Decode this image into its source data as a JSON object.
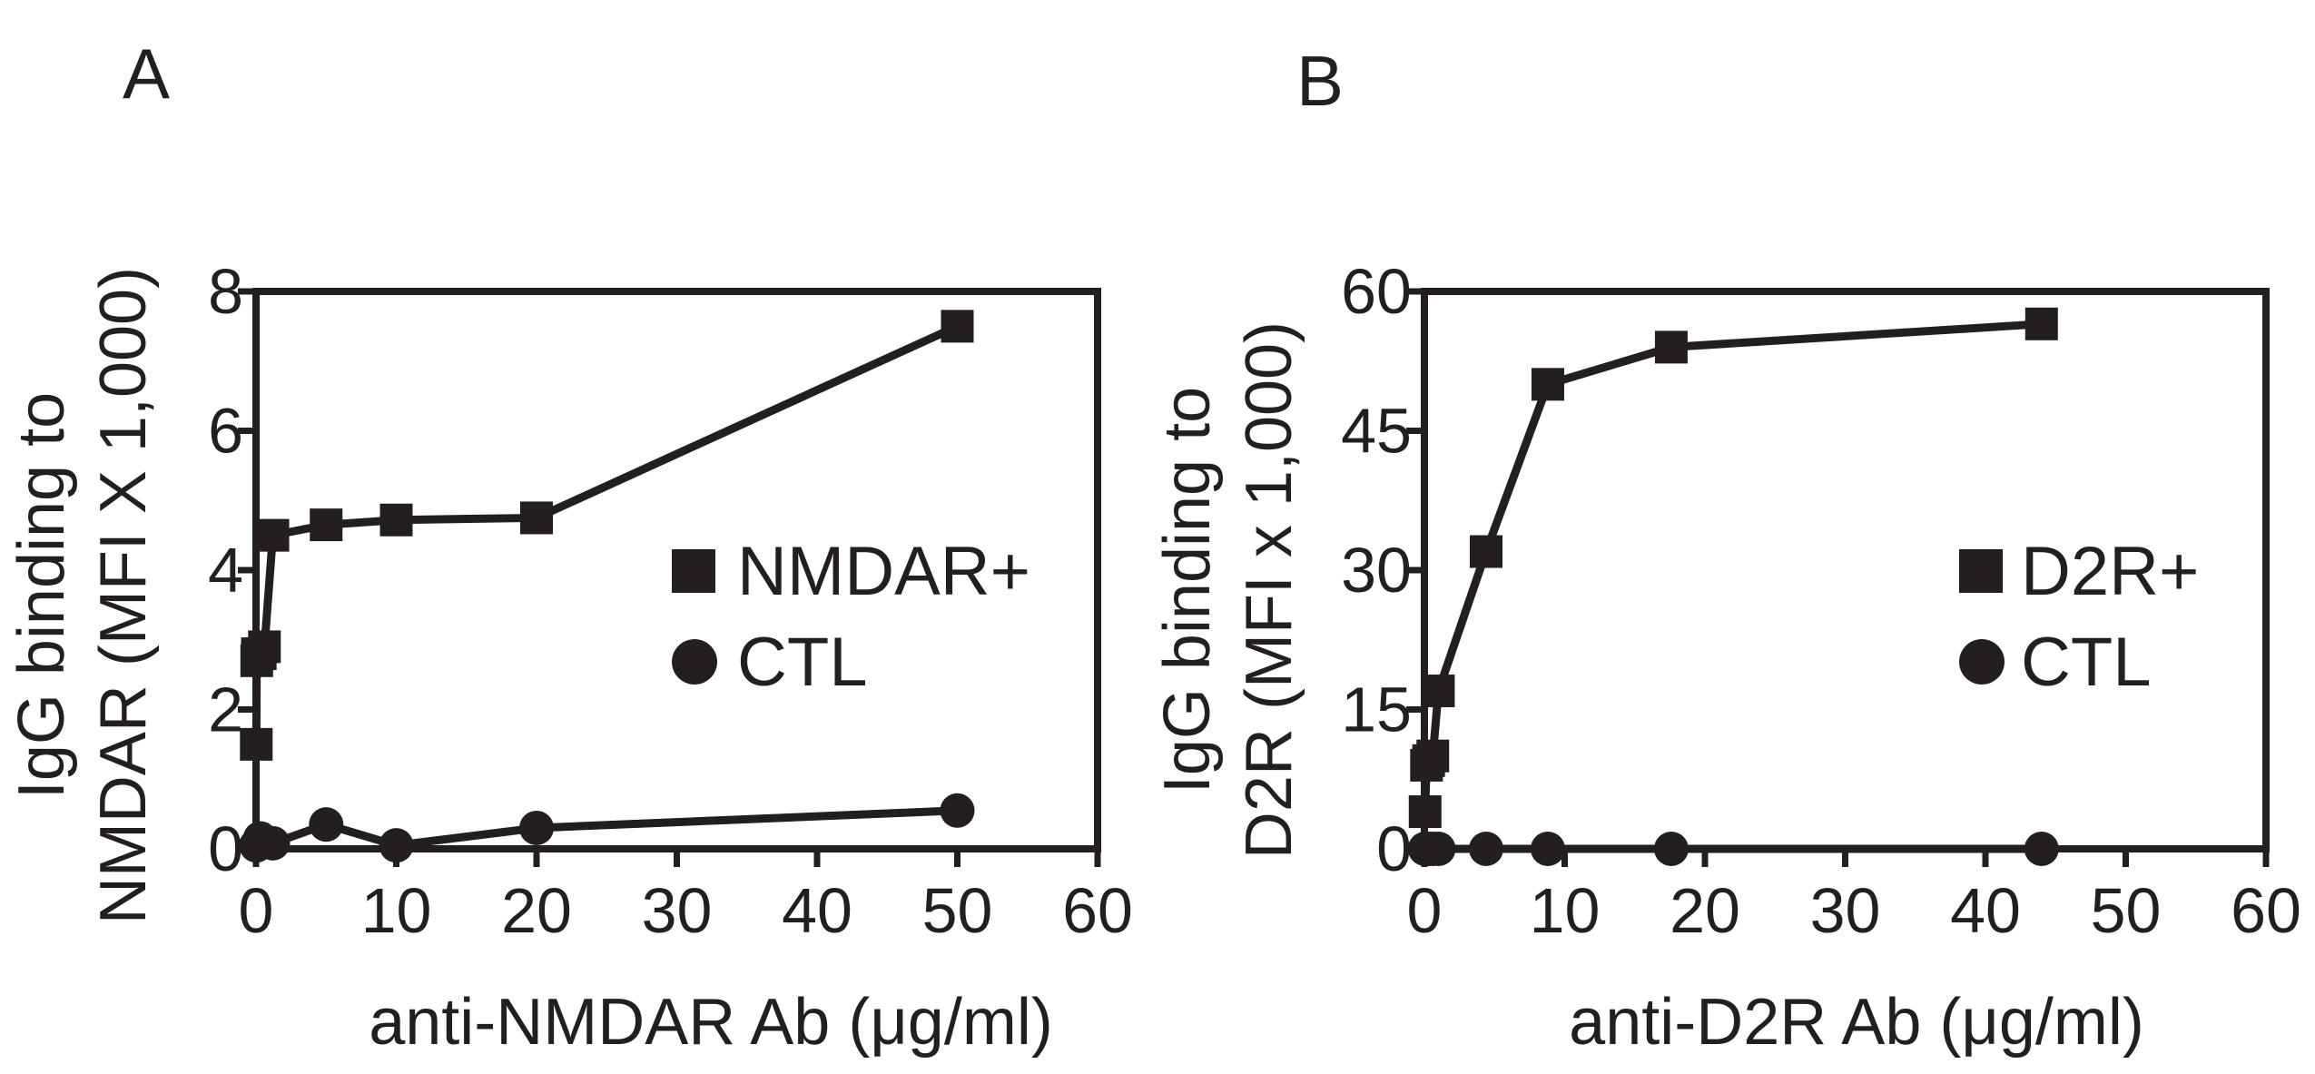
{
  "colors": {
    "ink": "#231f20",
    "background": "#ffffff"
  },
  "chart_data": [
    {
      "panel_label": "A",
      "type": "line",
      "xlabel": "anti-NMDAR Ab (μg/ml)",
      "ylabel_lines": [
        "IgG binding to",
        "NMDAR (MFI X 1,000)"
      ],
      "xlim": [
        0,
        60
      ],
      "ylim": [
        0,
        8
      ],
      "x_ticks": [
        0,
        10,
        20,
        30,
        40,
        50,
        60
      ],
      "y_ticks": [
        0,
        2,
        4,
        6,
        8
      ],
      "x_tick_labels": [
        "0",
        "10",
        "20",
        "30",
        "40",
        "50",
        "60"
      ],
      "y_tick_labels": [
        "0",
        "2",
        "4",
        "6",
        "8"
      ],
      "grid": false,
      "legend_position": "right-middle",
      "series": [
        {
          "name": "NMDAR+",
          "marker": "square",
          "x": [
            0.02,
            0.05,
            0.1,
            0.3,
            0.6,
            1.2,
            5,
            10,
            20,
            50
          ],
          "y": [
            1.5,
            2.7,
            2.8,
            2.8,
            2.9,
            4.5,
            4.65,
            4.72,
            4.75,
            7.5
          ]
        },
        {
          "name": "CTL",
          "marker": "circle",
          "x": [
            0.02,
            0.3,
            1.2,
            5,
            10,
            20,
            50
          ],
          "y": [
            0.05,
            0.15,
            0.08,
            0.35,
            0.05,
            0.3,
            0.55
          ]
        }
      ]
    },
    {
      "panel_label": "B",
      "type": "line",
      "xlabel": "anti-D2R Ab (μg/ml)",
      "ylabel_lines": [
        "IgG binding to",
        "D2R (MFI x 1,000)"
      ],
      "xlim": [
        0,
        60
      ],
      "ylim": [
        0,
        60
      ],
      "x_ticks": [
        0,
        10,
        20,
        30,
        40,
        50,
        60
      ],
      "y_ticks": [
        0,
        15,
        30,
        45,
        60
      ],
      "x_tick_labels": [
        "0",
        "10",
        "20",
        "30",
        "40",
        "50",
        "60"
      ],
      "y_tick_labels": [
        "0",
        "15",
        "30",
        "45",
        "60"
      ],
      "grid": false,
      "legend_position": "right-middle",
      "series": [
        {
          "name": "D2R+",
          "marker": "square",
          "x": [
            0.05,
            0.15,
            0.3,
            0.6,
            1.0,
            4.4,
            8.8,
            17.6,
            44
          ],
          "y": [
            4,
            9,
            9.5,
            10,
            17,
            32,
            50,
            54,
            56.5
          ]
        },
        {
          "name": "CTL",
          "marker": "circle",
          "x": [
            0.05,
            0.15,
            0.3,
            0.6,
            1.0,
            4.4,
            8.8,
            17.6,
            44
          ],
          "y": [
            0,
            0,
            0,
            0,
            0,
            0,
            0,
            0,
            0
          ]
        }
      ]
    }
  ]
}
